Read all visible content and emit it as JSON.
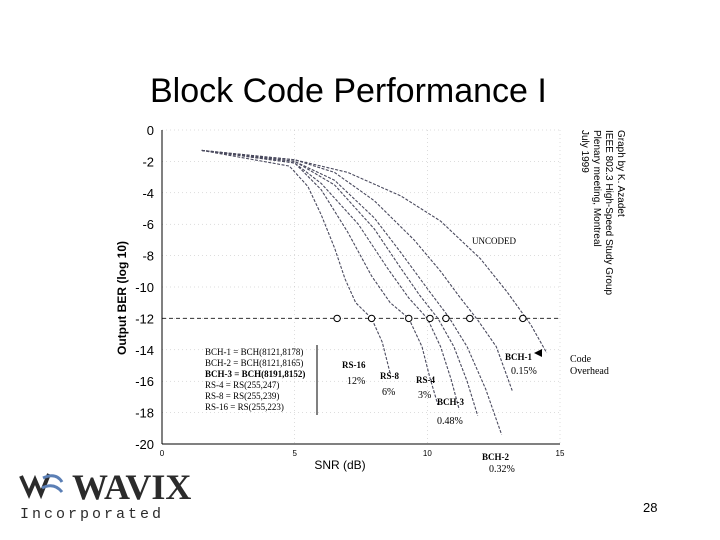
{
  "slide": {
    "title": "Block Code Performance I",
    "page_number": "28",
    "attribution": [
      "Graph by K. Azadet",
      "IEEE 802.3 High-Speed Study Group",
      "Plenary meeting, Montreal",
      "July 1999"
    ],
    "logo": {
      "word": "WAVIX",
      "sub": "Incorporated"
    }
  },
  "chart_data": {
    "type": "line",
    "xlabel": "SNR (dB)",
    "ylabel": "Output BER (log 10)",
    "xlim": [
      0,
      15
    ],
    "ylim": [
      -20,
      0
    ],
    "xticks": [
      0,
      5,
      10,
      15
    ],
    "yticks": [
      0,
      -2,
      -4,
      -6,
      -8,
      -10,
      -12,
      -14,
      -16,
      -18,
      -20
    ],
    "grid": true,
    "reference_line": {
      "y": -12
    },
    "series": [
      {
        "name": "UNCODED",
        "points": [
          [
            1.5,
            -1.3
          ],
          [
            5,
            -1.9
          ],
          [
            7,
            -2.7
          ],
          [
            9,
            -4.2
          ],
          [
            10.5,
            -5.8
          ],
          [
            12,
            -8.2
          ],
          [
            13,
            -10.3
          ],
          [
            13.9,
            -12.4
          ],
          [
            14.5,
            -14.2
          ]
        ]
      },
      {
        "name": "BCH-1",
        "points": [
          [
            1.5,
            -1.3
          ],
          [
            5,
            -1.9
          ],
          [
            6.5,
            -2.7
          ],
          [
            8,
            -4.5
          ],
          [
            9.5,
            -7
          ],
          [
            10.5,
            -9
          ],
          [
            11.2,
            -10.6
          ],
          [
            11.9,
            -12.1
          ],
          [
            12.6,
            -13.8
          ],
          [
            13.2,
            -16.6
          ]
        ]
      },
      {
        "name": "BCH-2",
        "points": [
          [
            1.5,
            -1.3
          ],
          [
            5,
            -2
          ],
          [
            6.5,
            -3.2
          ],
          [
            8,
            -5.6
          ],
          [
            9,
            -7.8
          ],
          [
            10,
            -10.1
          ],
          [
            10.8,
            -11.9
          ],
          [
            11.5,
            -13.8
          ],
          [
            12.2,
            -16.5
          ],
          [
            12.8,
            -19.4
          ]
        ]
      },
      {
        "name": "BCH-3",
        "points": [
          [
            1.5,
            -1.3
          ],
          [
            5,
            -2
          ],
          [
            6.5,
            -3.5
          ],
          [
            8,
            -6.3
          ],
          [
            9,
            -8.8
          ],
          [
            9.7,
            -10.5
          ],
          [
            10.4,
            -12
          ],
          [
            11,
            -13.8
          ],
          [
            11.5,
            -16
          ],
          [
            11.9,
            -18.2
          ]
        ]
      },
      {
        "name": "RS-4",
        "points": [
          [
            1.5,
            -1.3
          ],
          [
            5,
            -2.1
          ],
          [
            6,
            -3.4
          ],
          [
            7.4,
            -6
          ],
          [
            8.5,
            -8.8
          ],
          [
            9.3,
            -10.7
          ],
          [
            10,
            -12
          ],
          [
            10.5,
            -13.8
          ],
          [
            10.9,
            -15.9
          ],
          [
            11.2,
            -17.8
          ]
        ]
      },
      {
        "name": "RS-8",
        "points": [
          [
            1.5,
            -1.3
          ],
          [
            5,
            -2.1
          ],
          [
            6,
            -3.8
          ],
          [
            7,
            -6.5
          ],
          [
            7.9,
            -9.3
          ],
          [
            8.6,
            -11
          ],
          [
            9.3,
            -12
          ],
          [
            9.8,
            -13.8
          ],
          [
            10.1,
            -15.8
          ],
          [
            10.4,
            -17.5
          ]
        ]
      },
      {
        "name": "RS-16",
        "points": [
          [
            1.5,
            -1.3
          ],
          [
            4.8,
            -2.3
          ],
          [
            5.5,
            -3.6
          ],
          [
            6,
            -5.4
          ],
          [
            6.5,
            -7.5
          ],
          [
            6.9,
            -9.5
          ],
          [
            7.3,
            -11
          ],
          [
            7.9,
            -12
          ],
          [
            8.3,
            -13.5
          ],
          [
            8.6,
            -15.5
          ]
        ]
      }
    ],
    "markers_at_ref": [
      6.6,
      7.9,
      9.3,
      10.1,
      10.7,
      11.6,
      13.6
    ],
    "legend_lines": [
      "BCH-1 = BCH(8121,8178)",
      "BCH-2 = BCH(8121,8165)",
      "BCH-3 = BCH(8191,8152)",
      "RS-4 = RS(255,247)",
      "RS-8 = RS(255,239)",
      "RS-16 = RS(255,223)"
    ],
    "annotations": {
      "uncoded": "UNCODED",
      "rs16": {
        "name": "RS-16",
        "overhead": "12%"
      },
      "rs8": {
        "name": "RS-8",
        "overhead": "6%"
      },
      "rs4": {
        "name": "RS-4",
        "overhead": "3%"
      },
      "bch3": {
        "name": "BCH-3",
        "overhead": "0.48%"
      },
      "bch2": {
        "name": "BCH-2",
        "overhead": "0.32%"
      },
      "bch1": {
        "name": "BCH-1",
        "overhead": "0.15%"
      },
      "code_overhead": [
        "Code",
        "Overhead"
      ]
    },
    "colors": {
      "curve": "#4a4a5e",
      "grid": "#bbbbbb",
      "ref": "#333333",
      "axis": "#000000"
    }
  }
}
